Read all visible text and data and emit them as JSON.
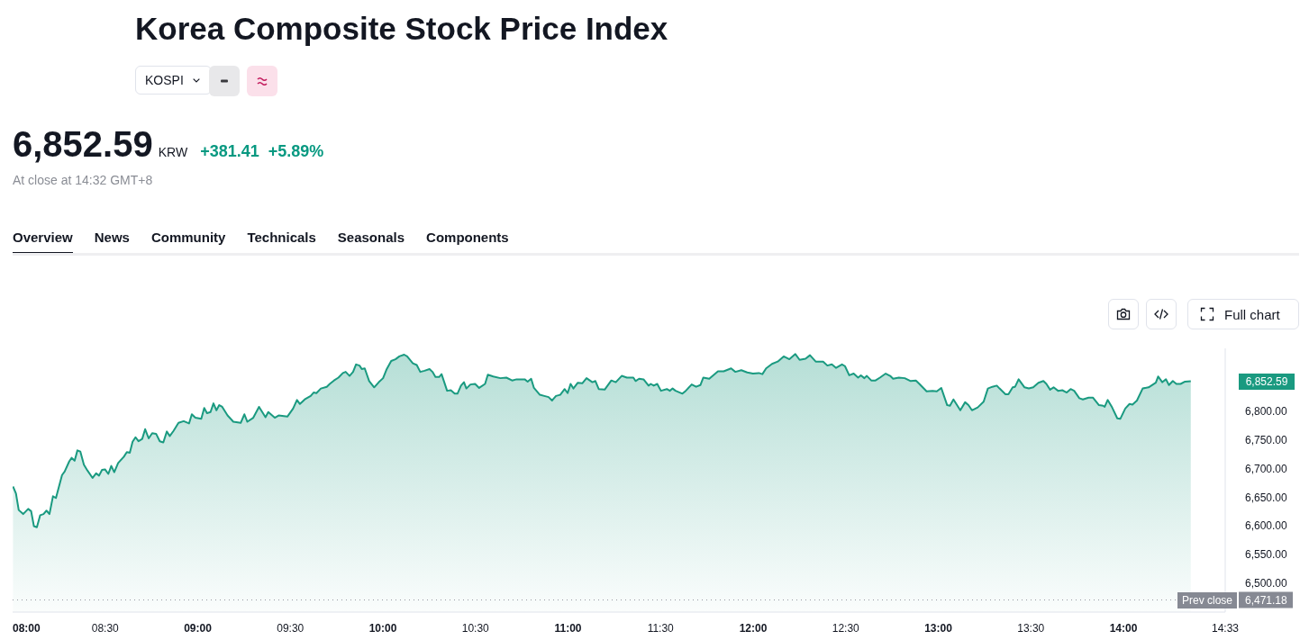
{
  "chart_data": {
    "type": "area",
    "title": "Korea Composite Stock Price Index",
    "subtitle": "KOSPI",
    "annotations": [
      "6,852.59",
      "KRW",
      "+381.41",
      "+5.89%",
      "At close at 14:32 GMT+8",
      "Overview",
      "News",
      "Community",
      "Technicals",
      "Seasonals",
      "Components",
      "Full chart",
      "6,852.59"
    ],
    "x": [
      8.002,
      8.018,
      8.033,
      8.057,
      8.084,
      8.1,
      8.115,
      8.131,
      8.149,
      8.167,
      8.183,
      8.199,
      8.218,
      8.234,
      8.267,
      8.281,
      8.306,
      8.319,
      8.335,
      8.35,
      8.366,
      8.385,
      8.404,
      8.432,
      8.451,
      8.467,
      8.483,
      8.499,
      8.517,
      8.533,
      8.549,
      8.57,
      8.601,
      8.617,
      8.633,
      8.648,
      8.664,
      8.68,
      8.7,
      8.716,
      8.735,
      8.754,
      8.775,
      8.795,
      8.814,
      8.833,
      8.849,
      8.869,
      8.896,
      8.924,
      8.953,
      8.968,
      8.987,
      9.019,
      9.035,
      9.05,
      9.069,
      9.085,
      9.101,
      9.116,
      9.132,
      9.161,
      9.192,
      9.232,
      9.252,
      9.268,
      9.3,
      9.331,
      9.366,
      9.381,
      9.416,
      9.437,
      9.484,
      9.515,
      9.536,
      9.552,
      9.578,
      9.61,
      9.626,
      9.641,
      9.665,
      9.697,
      9.713,
      9.736,
      9.76,
      9.784,
      9.799,
      9.82,
      9.839,
      9.855,
      9.874,
      9.886,
      9.902,
      9.926,
      9.953,
      9.978,
      10.001,
      10.021,
      10.045,
      10.068,
      10.089,
      10.115,
      10.131,
      10.162,
      10.183,
      10.202,
      10.225,
      10.252,
      10.268,
      10.284,
      10.304,
      10.317,
      10.347,
      10.367,
      10.388,
      10.403,
      10.422,
      10.438,
      10.451,
      10.473,
      10.498,
      10.52,
      10.552,
      10.567,
      10.596,
      10.635,
      10.667,
      10.698,
      10.722,
      10.766,
      10.782,
      10.801,
      10.816,
      10.848,
      10.872,
      10.895,
      10.914,
      10.935,
      10.958,
      10.982,
      10.998,
      11.014,
      11.029,
      11.053,
      11.077,
      11.1,
      11.132,
      11.148,
      11.166,
      11.198,
      11.234,
      11.258,
      11.29,
      11.318,
      11.353,
      11.365,
      11.384,
      11.408,
      11.435,
      11.447,
      11.463,
      11.482,
      11.502,
      11.534,
      11.55,
      11.565,
      11.581,
      11.618,
      11.636,
      11.668,
      11.692,
      11.715,
      11.731,
      11.763,
      11.81,
      11.841,
      11.881,
      11.904,
      11.936,
      11.968,
      11.999,
      12.031,
      12.05,
      12.07,
      12.102,
      12.133,
      12.165,
      12.196,
      12.228,
      12.251,
      12.283,
      12.307,
      12.338,
      12.378,
      12.401,
      12.425,
      12.448,
      12.48,
      12.496,
      12.519,
      12.543,
      12.567,
      12.582,
      12.601,
      12.614,
      12.638,
      12.661,
      12.685,
      12.716,
      12.74,
      12.756,
      12.787,
      12.819,
      12.851,
      12.879,
      12.898,
      12.937,
      12.969,
      12.992,
      13.016,
      13.048,
      13.063,
      13.082,
      13.119,
      13.145,
      13.163,
      13.182,
      13.213,
      13.245,
      13.268,
      13.292,
      13.316,
      13.331,
      13.363,
      13.379,
      13.402,
      13.415,
      13.434,
      13.466,
      13.489,
      13.513,
      13.541,
      13.568,
      13.584,
      13.604,
      13.623,
      13.647,
      13.67,
      13.694,
      13.715,
      13.734,
      13.762,
      13.781,
      13.812,
      13.836,
      13.868,
      13.891,
      13.899,
      13.915,
      13.939,
      13.967,
      13.983,
      14.01,
      14.033,
      14.049,
      14.073,
      14.104,
      14.136,
      14.175,
      14.188,
      14.21,
      14.23,
      14.246,
      14.267,
      14.286,
      14.309,
      14.333,
      14.364
    ],
    "series": [
      {
        "color": "#1a9a80",
        "values": [
          6669,
          6657,
          6628,
          6621,
          6630,
          6626,
          6600,
          6598,
          6619,
          6621,
          6627,
          6621,
          6652,
          6649,
          6689,
          6695,
          6713,
          6719,
          6714,
          6732,
          6730,
          6707,
          6697,
          6684,
          6692,
          6688,
          6698,
          6699,
          6691,
          6705,
          6694,
          6710,
          6721,
          6729,
          6728,
          6747,
          6755,
          6748,
          6752,
          6769,
          6753,
          6762,
          6761,
          6748,
          6746,
          6765,
          6757,
          6766,
          6780,
          6783,
          6779,
          6795,
          6789,
          6787,
          6806,
          6797,
          6799,
          6814,
          6802,
          6811,
          6808,
          6793,
          6782,
          6780,
          6795,
          6782,
          6789,
          6808,
          6790,
          6799,
          6789,
          6793,
          6791,
          6805,
          6820,
          6813,
          6821,
          6827,
          6833,
          6832,
          6840,
          6843,
          6848,
          6854,
          6859,
          6867,
          6869,
          6862,
          6869,
          6882,
          6880,
          6874,
          6875,
          6853,
          6842,
          6851,
          6858,
          6874,
          6888,
          6891,
          6896,
          6899,
          6896,
          6884,
          6881,
          6869,
          6871,
          6874,
          6869,
          6860,
          6860,
          6865,
          6836,
          6837,
          6831,
          6831,
          6845,
          6851,
          6840,
          6847,
          6848,
          6841,
          6848,
          6864,
          6861,
          6858,
          6859,
          6854,
          6856,
          6856,
          6852,
          6857,
          6841,
          6829,
          6827,
          6825,
          6819,
          6827,
          6829,
          6839,
          6832,
          6848,
          6840,
          6850,
          6849,
          6858,
          6851,
          6853,
          6839,
          6838,
          6854,
          6851,
          6862,
          6859,
          6859,
          6853,
          6857,
          6856,
          6845,
          6848,
          6845,
          6848,
          6836,
          6839,
          6836,
          6840,
          6836,
          6831,
          6836,
          6847,
          6843,
          6846,
          6859,
          6857,
          6870,
          6870,
          6875,
          6869,
          6872,
          6868,
          6866,
          6867,
          6865,
          6875,
          6883,
          6887,
          6896,
          6891,
          6900,
          6890,
          6892,
          6898,
          6887,
          6887,
          6880,
          6882,
          6876,
          6882,
          6879,
          6863,
          6866,
          6859,
          6863,
          6858,
          6862,
          6854,
          6854,
          6859,
          6866,
          6862,
          6857,
          6859,
          6858,
          6853,
          6854,
          6848,
          6835,
          6836,
          6835,
          6841,
          6811,
          6810,
          6821,
          6802,
          6816,
          6811,
          6802,
          6807,
          6817,
          6840,
          6843,
          6845,
          6840,
          6830,
          6830,
          6842,
          6843,
          6856,
          6842,
          6840,
          6842,
          6850,
          6853,
          6848,
          6838,
          6842,
          6836,
          6837,
          6833,
          6839,
          6836,
          6823,
          6821,
          6824,
          6824,
          6811,
          6810,
          6808,
          6820,
          6807,
          6788,
          6787,
          6805,
          6813,
          6812,
          6819,
          6840,
          6842,
          6850,
          6861,
          6851,
          6856,
          6846,
          6853,
          6848,
          6848,
          6852,
          6852.59
        ]
      }
    ],
    "xlim": [
      8,
      14.55
    ],
    "xticks": [
      {
        "value": 8,
        "label": "08:00"
      },
      {
        "value": 8.5,
        "label": "08:30"
      },
      {
        "value": 9,
        "label": "09:00"
      },
      {
        "value": 9.5,
        "label": "09:30"
      },
      {
        "value": 10,
        "label": "10:00"
      },
      {
        "value": 10.5,
        "label": "10:30"
      },
      {
        "value": 11,
        "label": "11:00"
      },
      {
        "value": 11.5,
        "label": "11:30"
      },
      {
        "value": 12,
        "label": "12:00"
      },
      {
        "value": 12.5,
        "label": "12:30"
      },
      {
        "value": 13,
        "label": "13:00"
      },
      {
        "value": 13.5,
        "label": "13:30"
      },
      {
        "value": 14,
        "label": "14:00"
      },
      {
        "value": 14.55,
        "label": "14:33"
      }
    ],
    "ylim": [
      6450,
      6910
    ],
    "yticks": [
      {
        "value": 6471.18,
        "label": "6,471.18"
      },
      {
        "value": 6500,
        "label": "6,500.00"
      },
      {
        "value": 6550,
        "label": "6,550.00"
      },
      {
        "value": 6600,
        "label": "6,600.00"
      },
      {
        "value": 6650,
        "label": "6,650.00"
      },
      {
        "value": 6700,
        "label": "6,700.00"
      },
      {
        "value": 6750,
        "label": "6,750.00"
      },
      {
        "value": 6800,
        "label": "6,800.00"
      }
    ],
    "ref_lines": [
      {
        "axis": "y",
        "value": 6471.18,
        "label": "Prev close",
        "color": "#9598a1",
        "line_style": "dotted"
      }
    ],
    "grid": false,
    "legend": false
  }
}
